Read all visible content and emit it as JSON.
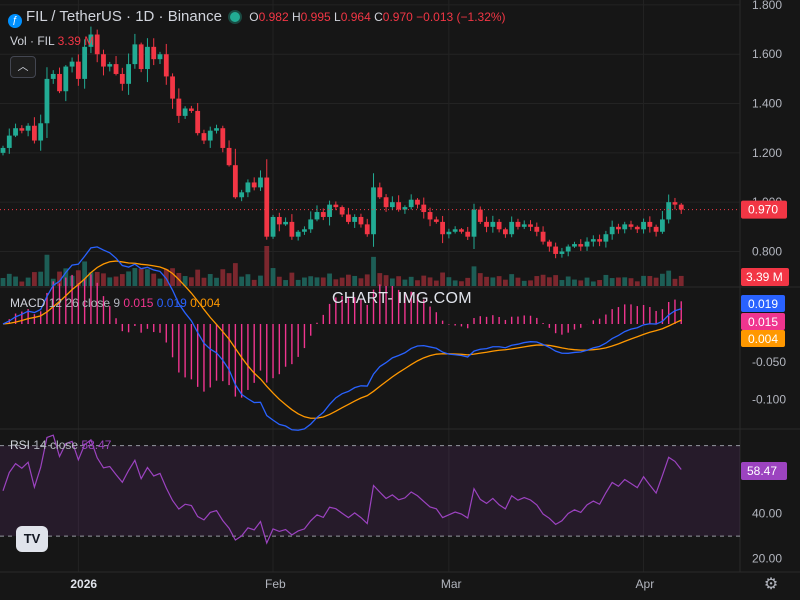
{
  "header": {
    "symbol": "FIL / TetherUS · 1D · Binance",
    "o_label": "O",
    "o_value": "0.982",
    "h_label": "H",
    "h_value": "0.995",
    "l_label": "L",
    "l_value": "0.964",
    "c_label": "C",
    "c_value": "0.970",
    "change": "−0.013 (−1.32%)",
    "vol_label": "Vol · FIL",
    "vol_value": "3.39 M"
  },
  "macd_header": {
    "label": "MACD",
    "params": "12 26 close 9",
    "hist": "0.015",
    "macd": "0.019",
    "signal": "0.004"
  },
  "rsi_header": {
    "label": "RSI",
    "params": "14 close",
    "value": "58.47"
  },
  "watermark": "CHART- IMG.COM",
  "logo_text": "TV",
  "colors": {
    "up": "#22ab94",
    "down": "#f23645",
    "macd": "#2962ff",
    "signal": "#ff9800",
    "rsi": "#9c43c0",
    "hist": "#f0358f"
  },
  "chart_data": [
    {
      "type": "candlestick",
      "start_date": "2025-12-20",
      "x_ticks": [
        "2026",
        "Feb",
        "Mar",
        "Apr"
      ],
      "x_tick_dates": [
        "2026-01-01",
        "2026-02-01",
        "2026-03-01",
        "2026-04-01"
      ],
      "y_ticks": [
        "1.800",
        "1.600",
        "1.400",
        "1.200",
        "1.000",
        "0.800"
      ],
      "y_tick_values": [
        1.8,
        1.6,
        1.4,
        1.2,
        1.0,
        0.8
      ],
      "ylim": [
        0.66,
        1.82
      ],
      "last_price": "0.970",
      "close": [
        1.22,
        1.27,
        1.3,
        1.29,
        1.31,
        1.25,
        1.32,
        1.5,
        1.52,
        1.45,
        1.55,
        1.57,
        1.5,
        1.63,
        1.68,
        1.6,
        1.55,
        1.56,
        1.52,
        1.48,
        1.56,
        1.64,
        1.54,
        1.63,
        1.58,
        1.6,
        1.51,
        1.42,
        1.35,
        1.38,
        1.37,
        1.28,
        1.25,
        1.29,
        1.3,
        1.22,
        1.15,
        1.02,
        1.04,
        1.08,
        1.06,
        1.1,
        0.86,
        0.94,
        0.91,
        0.92,
        0.86,
        0.88,
        0.89,
        0.93,
        0.96,
        0.94,
        0.99,
        0.98,
        0.95,
        0.92,
        0.94,
        0.91,
        0.87,
        1.06,
        1.02,
        0.98,
        1.0,
        0.97,
        0.98,
        1.01,
        0.99,
        0.96,
        0.93,
        0.92,
        0.87,
        0.88,
        0.89,
        0.88,
        0.86,
        0.97,
        0.92,
        0.9,
        0.92,
        0.89,
        0.87,
        0.92,
        0.9,
        0.91,
        0.9,
        0.88,
        0.84,
        0.82,
        0.79,
        0.8,
        0.82,
        0.83,
        0.82,
        0.84,
        0.85,
        0.84,
        0.87,
        0.9,
        0.89,
        0.91,
        0.9,
        0.89,
        0.92,
        0.9,
        0.88,
        0.93,
        1.0,
        0.99,
        0.97
      ],
      "volume_label": "3.39 M"
    },
    {
      "type": "macd",
      "y_ticks": [
        "-0.050",
        "-0.100"
      ],
      "y_tick_values": [
        -0.05,
        -0.1
      ],
      "ylim": [
        -0.135,
        0.045
      ],
      "last_macd": "0.019",
      "last_signal": "0.004",
      "last_hist": "0.015"
    },
    {
      "type": "rsi",
      "y_ticks": [
        "40.00",
        "20.00"
      ],
      "y_tick_values": [
        40,
        20
      ],
      "bands": [
        30,
        70
      ],
      "ylim": [
        15,
        76
      ],
      "last": "58.47"
    }
  ]
}
